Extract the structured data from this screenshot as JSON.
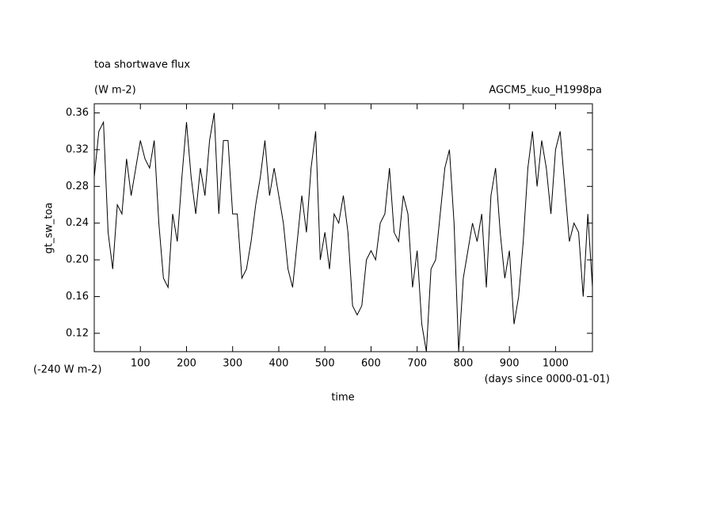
{
  "chart_data": {
    "type": "line",
    "title": "toa shortwave flux",
    "subtitle": "(W m-2)",
    "annotation_right": "AGCM5_kuo_H1998pa",
    "annotation_left": "(-240 W m-2)",
    "x_unit_label": "(days since 0000-01-01)",
    "xlabel": "time",
    "ylabel": "gt_sw_toa",
    "xlim": [
      0,
      1080
    ],
    "ylim": [
      0.1,
      0.37
    ],
    "xticks": [
      100,
      200,
      300,
      400,
      500,
      600,
      700,
      800,
      900,
      1000
    ],
    "yticks": [
      0.12,
      0.16,
      {
        "value": 0.2,
        "label": "0.20"
      },
      0.24,
      0.28,
      0.32,
      0.36
    ],
    "x": [
      0,
      10,
      20,
      30,
      40,
      50,
      60,
      70,
      80,
      90,
      100,
      110,
      120,
      130,
      140,
      150,
      160,
      170,
      180,
      190,
      200,
      210,
      220,
      230,
      240,
      250,
      260,
      270,
      280,
      290,
      300,
      310,
      320,
      330,
      340,
      350,
      360,
      370,
      380,
      390,
      400,
      410,
      420,
      430,
      440,
      450,
      460,
      470,
      480,
      490,
      500,
      510,
      520,
      530,
      540,
      550,
      560,
      570,
      580,
      590,
      600,
      610,
      620,
      630,
      640,
      650,
      660,
      670,
      680,
      690,
      700,
      710,
      720,
      730,
      740,
      750,
      760,
      770,
      780,
      790,
      800,
      810,
      820,
      830,
      840,
      850,
      860,
      870,
      880,
      890,
      900,
      910,
      920,
      930,
      940,
      950,
      960,
      970,
      980,
      990,
      1000,
      1010,
      1020,
      1030,
      1040,
      1050,
      1060,
      1070,
      1080
    ],
    "series": [
      {
        "color": "#000000",
        "values": [
          0.29,
          0.34,
          0.35,
          0.23,
          0.19,
          0.26,
          0.25,
          0.31,
          0.27,
          0.3,
          0.33,
          0.31,
          0.3,
          0.33,
          0.24,
          0.18,
          0.17,
          0.25,
          0.22,
          0.29,
          0.35,
          0.29,
          0.25,
          0.3,
          0.27,
          0.33,
          0.36,
          0.25,
          0.33,
          0.33,
          0.25,
          0.25,
          0.18,
          0.19,
          0.22,
          0.26,
          0.29,
          0.33,
          0.27,
          0.3,
          0.27,
          0.24,
          0.19,
          0.17,
          0.22,
          0.27,
          0.23,
          0.3,
          0.34,
          0.2,
          0.23,
          0.19,
          0.25,
          0.24,
          0.27,
          0.23,
          0.15,
          0.14,
          0.15,
          0.2,
          0.21,
          0.2,
          0.24,
          0.25,
          0.3,
          0.23,
          0.22,
          0.27,
          0.25,
          0.17,
          0.21,
          0.13,
          0.1,
          0.19,
          0.2,
          0.25,
          0.3,
          0.32,
          0.24,
          0.1,
          0.18,
          0.21,
          0.24,
          0.22,
          0.25,
          0.17,
          0.27,
          0.3,
          0.23,
          0.18,
          0.21,
          0.13,
          0.16,
          0.22,
          0.3,
          0.34,
          0.28,
          0.33,
          0.3,
          0.25,
          0.32,
          0.34,
          0.28,
          0.22,
          0.24,
          0.23,
          0.16,
          0.25,
          0.17
        ]
      }
    ]
  }
}
